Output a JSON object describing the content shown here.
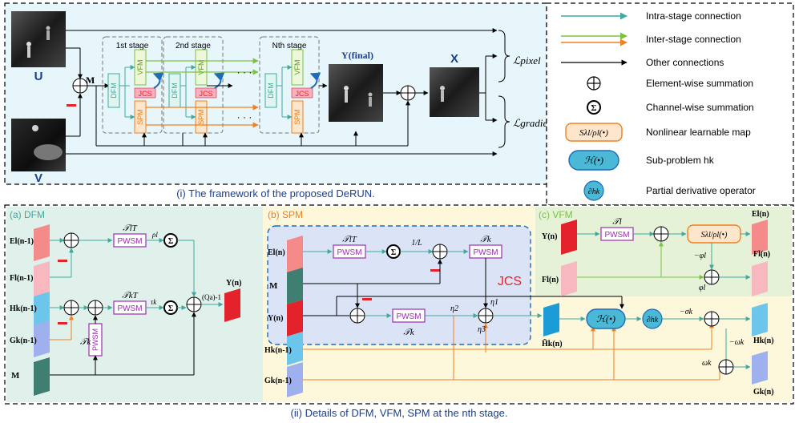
{
  "framework": {
    "caption": "(i) The framework of the proposed DeRUN.",
    "input_u": "U",
    "input_v": "V",
    "m_label": "M",
    "minus": "-",
    "stage1": "1st stage",
    "stage2": "2nd stage",
    "stageN": "Nth stage",
    "dfm": "DFM",
    "vfm": "VFM",
    "spm": "SPM",
    "jcs": "JCS",
    "dots": "· · ·",
    "y_final": "Y(final)",
    "x_label": "X",
    "loss_pixel": "ℒpixel",
    "loss_gradient": "ℒgradient"
  },
  "legend": {
    "items": [
      {
        "label": "Intra-stage connection"
      },
      {
        "label": "Inter-stage connection"
      },
      {
        "label": "Other connections"
      },
      {
        "label": "Element-wise summation"
      },
      {
        "label": "Channel-wise summation"
      },
      {
        "label": "Nonlinear learnable map"
      },
      {
        "label": "Sub-problem hk"
      },
      {
        "label": "Partial derivative operator"
      }
    ],
    "map_symbol": "Sλl/ρl(•)",
    "sub_symbol": "ℋ(•)",
    "partial_symbol": "∂hk"
  },
  "details": {
    "caption": "(ii) Details of DFM, VFM, SPM at the nth stage.",
    "dfm_title": "(a) DFM",
    "spm_title": "(b) SPM",
    "vfm_title": "(c) VFM",
    "jcs": "JCS",
    "pwsm": "PWSM",
    "dfm_inputs": [
      "El(n-1)",
      "Fl(n-1)",
      "Hk(n-1)",
      "Gk(n-1)",
      "M"
    ],
    "dfm_output": "Y(n)",
    "qa_inv": "(Qa)-1",
    "spm_inputs": [
      "El(n)",
      "M",
      "Y(n)",
      "Hk(n-1)",
      "Gk(n-1)"
    ],
    "spm_output": "H̃k(n)",
    "vfm_inputs": [
      "Y(n)",
      "Fl(n)"
    ],
    "vfm_outputs": [
      "El(n)",
      "Fl(n)",
      "Hk(n)",
      "Gk(n)"
    ],
    "tl_t": "𝒯lT",
    "tk_t": "𝒯kT",
    "tl": "𝒯l",
    "tk": "𝒯k",
    "rho_l": "ρl",
    "tau_k": "τk",
    "one_over_l": "1/L",
    "eta1": "η1",
    "eta2": "η2",
    "eta3": "η3",
    "neg_phi": "−φl",
    "phi": "φl",
    "neg_sigma": "−σk",
    "neg_omega": "−ωk",
    "omega": "ωk"
  },
  "colors": {
    "intra": "#3fa9a0",
    "inter": "#7cc242",
    "inter_orange": "#f08020",
    "other": "#000000",
    "framework_bg": "#e6f6fb",
    "dfm_bg": "#dff1ea",
    "spm_bg": "#fdf7dc",
    "vfm_bg": "#e6f2d8",
    "jcs_bg": "#dbe3f6",
    "pwsm": "#9b2fb0",
    "red": "#e3222b"
  }
}
